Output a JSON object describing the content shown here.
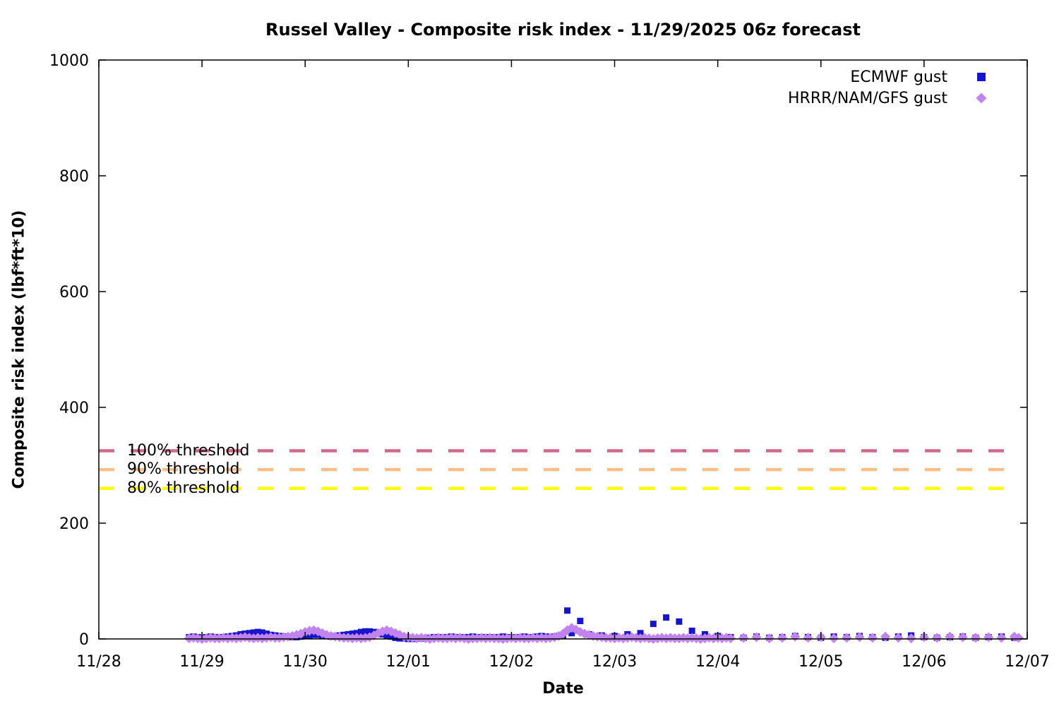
{
  "chart_data": {
    "type": "scatter",
    "title": "Russel Valley - Composite risk index - 11/29/2025 06z forecast",
    "xlabel": "Date",
    "ylabel": "Composite risk index (lbf*ft*10)",
    "x_tick_labels": [
      "11/28",
      "11/29",
      "11/30",
      "12/01",
      "12/02",
      "12/03",
      "12/04",
      "12/05",
      "12/06",
      "12/07"
    ],
    "x_range_days": [
      0,
      9
    ],
    "ylim": [
      0,
      1000
    ],
    "y_ticks": [
      0,
      200,
      400,
      600,
      800,
      1000
    ],
    "grid": false,
    "legend_position": "top-right-inside",
    "axis_color": "#000000",
    "thresholds": [
      {
        "label": "100% threshold",
        "value": 325,
        "color": "#d4688a"
      },
      {
        "label": "90% threshold",
        "value": 292.5,
        "color": "#fbbe86"
      },
      {
        "label": "80% threshold",
        "value": 260,
        "color": "#ffff00"
      }
    ],
    "series": [
      {
        "name": "ECMWF gust",
        "marker": "square",
        "color": "#1515cd",
        "x_unit": "days since 11/28 00:00",
        "points": [
          [
            0.875,
            3
          ],
          [
            0.9167,
            4
          ],
          [
            0.9583,
            3
          ],
          [
            1,
            2
          ],
          [
            1.0417,
            3
          ],
          [
            1.0833,
            4
          ],
          [
            1.125,
            3
          ],
          [
            1.1667,
            2
          ],
          [
            1.2083,
            3
          ],
          [
            1.25,
            4
          ],
          [
            1.2917,
            5
          ],
          [
            1.3333,
            6
          ],
          [
            1.375,
            8
          ],
          [
            1.4167,
            9
          ],
          [
            1.4583,
            10
          ],
          [
            1.5,
            11
          ],
          [
            1.5417,
            12
          ],
          [
            1.5833,
            11
          ],
          [
            1.625,
            9
          ],
          [
            1.6667,
            7
          ],
          [
            1.7083,
            6
          ],
          [
            1.75,
            5
          ],
          [
            1.7917,
            4
          ],
          [
            1.8333,
            4
          ],
          [
            1.875,
            3
          ],
          [
            1.9167,
            3
          ],
          [
            1.9583,
            4
          ],
          [
            2,
            5
          ],
          [
            2.0417,
            6
          ],
          [
            2.0833,
            7
          ],
          [
            2.125,
            7
          ],
          [
            2.1667,
            6
          ],
          [
            2.2083,
            5
          ],
          [
            2.25,
            4
          ],
          [
            2.2917,
            5
          ],
          [
            2.3333,
            6
          ],
          [
            2.375,
            7
          ],
          [
            2.4167,
            8
          ],
          [
            2.4583,
            9
          ],
          [
            2.5,
            10
          ],
          [
            2.5417,
            12
          ],
          [
            2.5833,
            13
          ],
          [
            2.625,
            13
          ],
          [
            2.6667,
            12
          ],
          [
            2.7083,
            10
          ],
          [
            2.75,
            8
          ],
          [
            2.7917,
            6
          ],
          [
            2.8333,
            4
          ],
          [
            2.875,
            2
          ],
          [
            2.9167,
            1
          ],
          [
            2.9583,
            1
          ],
          [
            3,
            0
          ],
          [
            3.0417,
            0
          ],
          [
            3.0833,
            1
          ],
          [
            3.125,
            1
          ],
          [
            3.1667,
            1
          ],
          [
            3.2083,
            2
          ],
          [
            3.25,
            3
          ],
          [
            3.2917,
            3
          ],
          [
            3.3333,
            2
          ],
          [
            3.375,
            3
          ],
          [
            3.4167,
            4
          ],
          [
            3.4583,
            3
          ],
          [
            3.5,
            2
          ],
          [
            3.5417,
            3
          ],
          [
            3.5833,
            3
          ],
          [
            3.625,
            4
          ],
          [
            3.6667,
            3
          ],
          [
            3.7083,
            2
          ],
          [
            3.75,
            3
          ],
          [
            3.7917,
            3
          ],
          [
            3.8333,
            2
          ],
          [
            3.875,
            3
          ],
          [
            3.9167,
            4
          ],
          [
            3.9583,
            3
          ],
          [
            4,
            3
          ],
          [
            4.0417,
            2
          ],
          [
            4.0833,
            3
          ],
          [
            4.125,
            4
          ],
          [
            4.1667,
            3
          ],
          [
            4.2083,
            3
          ],
          [
            4.25,
            4
          ],
          [
            4.2917,
            5
          ],
          [
            4.3333,
            4
          ],
          [
            4.375,
            3
          ],
          [
            4.4167,
            4
          ],
          [
            4.4583,
            5
          ],
          [
            4.5,
            6
          ],
          [
            4.5417,
            49
          ],
          [
            4.5833,
            10
          ],
          [
            4.6667,
            31
          ],
          [
            4.75,
            8
          ],
          [
            4.875,
            6
          ],
          [
            5,
            5
          ],
          [
            5.125,
            8
          ],
          [
            5.25,
            10
          ],
          [
            5.375,
            26
          ],
          [
            5.5,
            37
          ],
          [
            5.625,
            30
          ],
          [
            5.75,
            14
          ],
          [
            5.875,
            8
          ],
          [
            6,
            5
          ],
          [
            6.125,
            3
          ],
          [
            6.25,
            2
          ],
          [
            6.375,
            4
          ],
          [
            6.5,
            2
          ],
          [
            6.625,
            3
          ],
          [
            6.75,
            5
          ],
          [
            6.875,
            3
          ],
          [
            7,
            2
          ],
          [
            7.125,
            4
          ],
          [
            7.25,
            3
          ],
          [
            7.375,
            5
          ],
          [
            7.5,
            3
          ],
          [
            7.625,
            2
          ],
          [
            7.75,
            4
          ],
          [
            7.875,
            6
          ],
          [
            8,
            3
          ],
          [
            8.125,
            2
          ],
          [
            8.25,
            3
          ],
          [
            8.375,
            4
          ],
          [
            8.5,
            2
          ],
          [
            8.625,
            3
          ],
          [
            8.75,
            4
          ],
          [
            8.875,
            2
          ]
        ]
      },
      {
        "name": "HRRR/NAM/GFS gust",
        "marker": "diamond",
        "color": "#c183f0",
        "x_unit": "days since 11/28 00:00",
        "points": [
          [
            0.875,
            1
          ],
          [
            0.9167,
            2
          ],
          [
            0.9583,
            1
          ],
          [
            1,
            0
          ],
          [
            1.0417,
            1
          ],
          [
            1.0833,
            2
          ],
          [
            1.125,
            1
          ],
          [
            1.1667,
            1
          ],
          [
            1.2083,
            2
          ],
          [
            1.25,
            1
          ],
          [
            1.2917,
            2
          ],
          [
            1.3333,
            1
          ],
          [
            1.375,
            2
          ],
          [
            1.4167,
            3
          ],
          [
            1.4583,
            2
          ],
          [
            1.5,
            1
          ],
          [
            1.5417,
            2
          ],
          [
            1.5833,
            1
          ],
          [
            1.625,
            2
          ],
          [
            1.6667,
            3
          ],
          [
            1.7083,
            2
          ],
          [
            1.75,
            2
          ],
          [
            1.7917,
            3
          ],
          [
            1.8333,
            4
          ],
          [
            1.875,
            5
          ],
          [
            1.9167,
            7
          ],
          [
            1.9583,
            9
          ],
          [
            2,
            12
          ],
          [
            2.0417,
            14
          ],
          [
            2.0833,
            15
          ],
          [
            2.125,
            13
          ],
          [
            2.1667,
            10
          ],
          [
            2.2083,
            7
          ],
          [
            2.25,
            5
          ],
          [
            2.2917,
            4
          ],
          [
            2.3333,
            3
          ],
          [
            2.375,
            2
          ],
          [
            2.4167,
            2
          ],
          [
            2.4583,
            1
          ],
          [
            2.5,
            2
          ],
          [
            2.5417,
            1
          ],
          [
            2.5833,
            2
          ],
          [
            2.625,
            3
          ],
          [
            2.6667,
            6
          ],
          [
            2.7083,
            10
          ],
          [
            2.75,
            13
          ],
          [
            2.7917,
            15
          ],
          [
            2.8333,
            13
          ],
          [
            2.875,
            10
          ],
          [
            2.9167,
            7
          ],
          [
            2.9583,
            4
          ],
          [
            3,
            3
          ],
          [
            3.0417,
            2
          ],
          [
            3.0833,
            1
          ],
          [
            3.125,
            2
          ],
          [
            3.1667,
            1
          ],
          [
            3.2083,
            0
          ],
          [
            3.25,
            1
          ],
          [
            3.2917,
            2
          ],
          [
            3.3333,
            1
          ],
          [
            3.375,
            1
          ],
          [
            3.4167,
            2
          ],
          [
            3.4583,
            1
          ],
          [
            3.5,
            2
          ],
          [
            3.5417,
            1
          ],
          [
            3.5833,
            0
          ],
          [
            3.625,
            1
          ],
          [
            3.6667,
            1
          ],
          [
            3.7083,
            2
          ],
          [
            3.75,
            1
          ],
          [
            3.7917,
            2
          ],
          [
            3.8333,
            1
          ],
          [
            3.875,
            1
          ],
          [
            3.9167,
            0
          ],
          [
            3.9583,
            1
          ],
          [
            4,
            2
          ],
          [
            4.0417,
            1
          ],
          [
            4.0833,
            2
          ],
          [
            4.125,
            1
          ],
          [
            4.1667,
            1
          ],
          [
            4.2083,
            2
          ],
          [
            4.25,
            1
          ],
          [
            4.2917,
            2
          ],
          [
            4.3333,
            1
          ],
          [
            4.375,
            2
          ],
          [
            4.4167,
            3
          ],
          [
            4.4583,
            5
          ],
          [
            4.5,
            9
          ],
          [
            4.5417,
            15
          ],
          [
            4.5833,
            19
          ],
          [
            4.625,
            16
          ],
          [
            4.6667,
            12
          ],
          [
            4.7083,
            9
          ],
          [
            4.75,
            7
          ],
          [
            4.7917,
            5
          ],
          [
            4.8333,
            4
          ],
          [
            4.875,
            3
          ],
          [
            4.9167,
            2
          ],
          [
            4.9583,
            2
          ],
          [
            5,
            1
          ],
          [
            5.0417,
            2
          ],
          [
            5.0833,
            1
          ],
          [
            5.125,
            2
          ],
          [
            5.1667,
            3
          ],
          [
            5.2083,
            2
          ],
          [
            5.25,
            1
          ],
          [
            5.2917,
            2
          ],
          [
            5.3333,
            1
          ],
          [
            5.375,
            0
          ],
          [
            5.4167,
            1
          ],
          [
            5.4583,
            2
          ],
          [
            5.5,
            1
          ],
          [
            5.5417,
            2
          ],
          [
            5.5833,
            1
          ],
          [
            5.625,
            1
          ],
          [
            5.6667,
            2
          ],
          [
            5.7083,
            1
          ],
          [
            5.75,
            2
          ],
          [
            5.7917,
            1
          ],
          [
            5.8333,
            0
          ],
          [
            5.875,
            1
          ],
          [
            5.9167,
            2
          ],
          [
            5.9583,
            1
          ],
          [
            6,
            2
          ],
          [
            6.0417,
            1
          ],
          [
            6.0833,
            2
          ],
          [
            6.125,
            1
          ],
          [
            6.25,
            2
          ],
          [
            6.375,
            3
          ],
          [
            6.5,
            1
          ],
          [
            6.625,
            2
          ],
          [
            6.75,
            4
          ],
          [
            6.875,
            2
          ],
          [
            7,
            3
          ],
          [
            7.125,
            1
          ],
          [
            7.25,
            2
          ],
          [
            7.375,
            3
          ],
          [
            7.5,
            2
          ],
          [
            7.625,
            4
          ],
          [
            7.75,
            2
          ],
          [
            7.875,
            1
          ],
          [
            8,
            3
          ],
          [
            8.125,
            2
          ],
          [
            8.25,
            4
          ],
          [
            8.375,
            3
          ],
          [
            8.5,
            2
          ],
          [
            8.625,
            3
          ],
          [
            8.75,
            2
          ],
          [
            8.875,
            4
          ],
          [
            8.9167,
            2
          ]
        ]
      }
    ]
  }
}
